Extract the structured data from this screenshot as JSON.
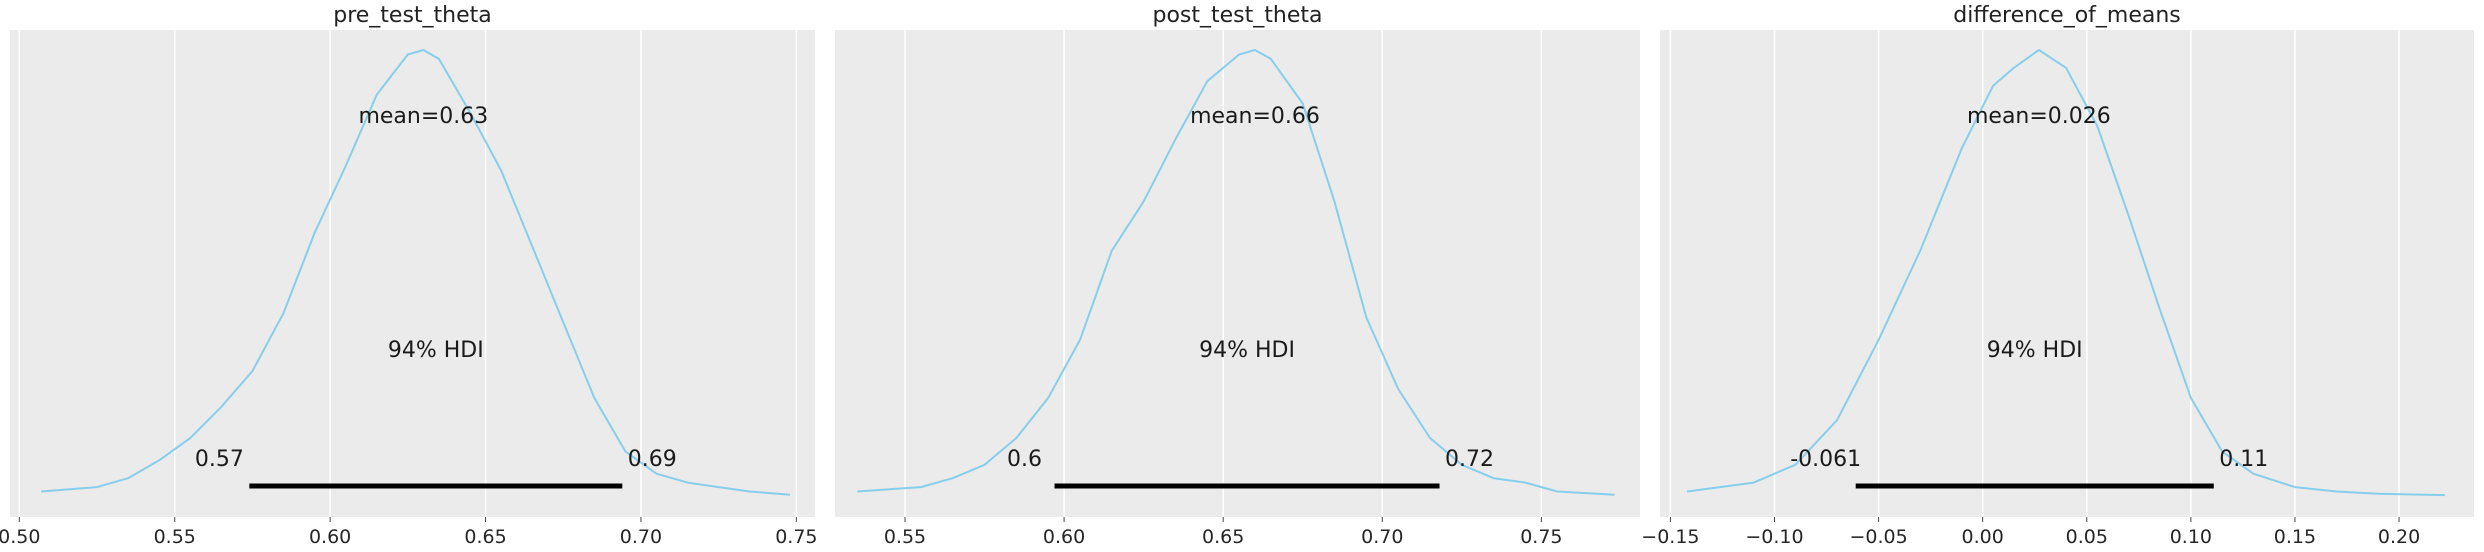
{
  "colors": {
    "panel_bg": "#ebebeb",
    "grid": "#ffffff",
    "kde": "#87ceeb",
    "hdi": "#000000",
    "text": "#262626"
  },
  "chart_data": [
    {
      "type": "line",
      "title": "pre_test_theta",
      "xlim": [
        0.497,
        0.756
      ],
      "ticks": [
        0.5,
        0.55,
        0.6,
        0.65,
        0.7,
        0.75
      ],
      "tick_labels": [
        "0.50",
        "0.55",
        "0.60",
        "0.65",
        "0.70",
        "0.75"
      ],
      "grid": true,
      "mean_label": "mean=0.63",
      "hdi_label": "94% HDI",
      "hdi": [
        0.574,
        0.694
      ],
      "hdi_labels": [
        "0.57",
        "0.69"
      ],
      "density_x": [
        0.507,
        0.525,
        0.535,
        0.545,
        0.555,
        0.565,
        0.575,
        0.585,
        0.595,
        0.605,
        0.615,
        0.625,
        0.63,
        0.635,
        0.645,
        0.655,
        0.665,
        0.675,
        0.685,
        0.695,
        0.705,
        0.715,
        0.725,
        0.735,
        0.748
      ],
      "density_y": [
        0.01,
        0.02,
        0.04,
        0.08,
        0.13,
        0.2,
        0.28,
        0.41,
        0.59,
        0.74,
        0.9,
        0.99,
        1.0,
        0.98,
        0.86,
        0.73,
        0.56,
        0.39,
        0.22,
        0.1,
        0.05,
        0.03,
        0.02,
        0.01,
        0.003
      ]
    },
    {
      "type": "line",
      "title": "post_test_theta",
      "xlim": [
        0.528,
        0.781
      ],
      "ticks": [
        0.55,
        0.6,
        0.65,
        0.7,
        0.75
      ],
      "tick_labels": [
        "0.55",
        "0.60",
        "0.65",
        "0.70",
        "0.75"
      ],
      "grid": true,
      "mean_label": "mean=0.66",
      "hdi_label": "94% HDI",
      "hdi": [
        0.597,
        0.718
      ],
      "hdi_labels": [
        "0.6",
        "0.72"
      ],
      "density_x": [
        0.535,
        0.555,
        0.565,
        0.575,
        0.585,
        0.595,
        0.605,
        0.615,
        0.625,
        0.635,
        0.645,
        0.655,
        0.66,
        0.665,
        0.675,
        0.685,
        0.695,
        0.705,
        0.715,
        0.725,
        0.735,
        0.745,
        0.755,
        0.773
      ],
      "density_y": [
        0.01,
        0.02,
        0.04,
        0.07,
        0.13,
        0.22,
        0.35,
        0.55,
        0.66,
        0.8,
        0.93,
        0.99,
        1.0,
        0.98,
        0.88,
        0.66,
        0.4,
        0.24,
        0.13,
        0.07,
        0.04,
        0.03,
        0.01,
        0.003
      ]
    },
    {
      "type": "line",
      "title": "difference_of_means",
      "xlim": [
        -0.155,
        0.236
      ],
      "ticks": [
        -0.15,
        -0.1,
        -0.05,
        0.0,
        0.05,
        0.1,
        0.15,
        0.2
      ],
      "tick_labels": [
        "−0.15",
        "−0.10",
        "−0.05",
        "0.00",
        "0.05",
        "0.10",
        "0.15",
        "0.20"
      ],
      "grid": true,
      "mean_label": "mean=0.026",
      "hdi_label": "94% HDI",
      "hdi": [
        -0.061,
        0.111
      ],
      "hdi_labels": [
        "-0.061",
        "0.11"
      ],
      "density_x": [
        -0.142,
        -0.11,
        -0.09,
        -0.07,
        -0.05,
        -0.03,
        -0.01,
        0.005,
        0.015,
        0.027,
        0.04,
        0.055,
        0.07,
        0.085,
        0.1,
        0.115,
        0.13,
        0.15,
        0.17,
        0.19,
        0.222
      ],
      "density_y": [
        0.01,
        0.03,
        0.07,
        0.17,
        0.35,
        0.55,
        0.78,
        0.92,
        0.96,
        1.0,
        0.96,
        0.83,
        0.63,
        0.42,
        0.22,
        0.1,
        0.05,
        0.02,
        0.01,
        0.005,
        0.002
      ]
    }
  ]
}
